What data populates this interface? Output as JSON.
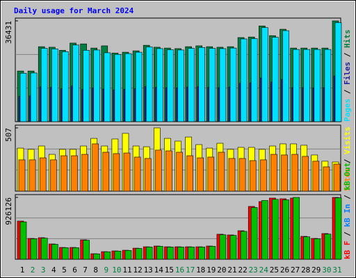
{
  "chart_data": [
    {
      "type": "bar",
      "title": "Daily usage for March 2024",
      "categories": [
        1,
        2,
        3,
        4,
        5,
        6,
        7,
        8,
        9,
        10,
        11,
        12,
        13,
        14,
        15,
        16,
        17,
        18,
        19,
        20,
        21,
        22,
        23,
        24,
        25,
        26,
        27,
        28,
        29,
        30,
        31
      ],
      "weekends": [
        2,
        3,
        9,
        10,
        16,
        17,
        23,
        24,
        30,
        31
      ],
      "weekday_color": "#000000",
      "weekend_color": "#008040",
      "legend_separator": " / ",
      "legend_reversed": true,
      "ylim": [
        0,
        36431
      ],
      "yticks": [
        36431
      ],
      "gridlines": [
        24287,
        12144
      ],
      "series": [
        {
          "name": "Hits",
          "color": "#008040",
          "values": [
            18300,
            18300,
            27100,
            26900,
            25800,
            28400,
            28100,
            26600,
            27400,
            24800,
            25100,
            25600,
            27600,
            26900,
            26600,
            26400,
            27100,
            27400,
            27100,
            26900,
            27100,
            30400,
            30600,
            34600,
            31100,
            33400,
            26600,
            26600,
            26600,
            26600,
            36431
          ]
        },
        {
          "name": "Files",
          "color": "#2020a0",
          "values": [
            9200,
            9300,
            12600,
            12400,
            11900,
            12900,
            11600,
            12200,
            11800,
            11500,
            11700,
            11900,
            12700,
            12400,
            12300,
            12200,
            12500,
            12600,
            12400,
            12300,
            12500,
            13900,
            14000,
            15800,
            14300,
            15300,
            12300,
            12300,
            12200,
            12300,
            16500
          ]
        },
        {
          "name": "Pages",
          "color": "#00e0ff",
          "values": [
            17500,
            17600,
            26500,
            26300,
            25300,
            27700,
            25800,
            25900,
            24900,
            24300,
            24600,
            25100,
            27000,
            26400,
            26000,
            25900,
            26500,
            26800,
            26500,
            26400,
            26600,
            29900,
            30000,
            34000,
            30500,
            32900,
            26100,
            26100,
            26100,
            26100,
            35800
          ]
        }
      ]
    },
    {
      "type": "bar",
      "legend_separator": " / ",
      "legend_reversed": true,
      "ylim": [
        0,
        507
      ],
      "yticks": [
        507
      ],
      "gridlines": [
        338,
        169
      ],
      "series": [
        {
          "name": "Visits",
          "color": "#ffff00",
          "values": [
            345,
            335,
            362,
            295,
            335,
            335,
            362,
            423,
            362,
            418,
            463,
            362,
            356,
            507,
            423,
            401,
            434,
            373,
            345,
            384,
            335,
            351,
            351,
            335,
            362,
            379,
            379,
            368,
            290,
            240,
            234
          ]
        },
        {
          "name": "Sites",
          "color": "#ff8000",
          "values": [
            251,
            251,
            267,
            251,
            284,
            284,
            295,
            379,
            312,
            301,
            306,
            273,
            262,
            329,
            323,
            312,
            284,
            267,
            273,
            312,
            262,
            262,
            245,
            251,
            295,
            290,
            295,
            279,
            240,
            195,
            217
          ]
        }
      ]
    },
    {
      "type": "bar",
      "legend_separator": " / ",
      "legend_reversed": false,
      "ylim": [
        0,
        926126
      ],
      "yticks": [
        926126
      ],
      "gridlines": [
        617417,
        308709
      ],
      "series": [
        {
          "name": "kB F",
          "color": "#ff0000",
          "values": [
            572000,
            312000,
            323000,
            229000,
            177000,
            177000,
            291000,
            83000,
            114000,
            125000,
            135000,
            166000,
            187000,
            198000,
            187000,
            187000,
            187000,
            187000,
            198000,
            375000,
            364000,
            427000,
            791000,
            864000,
            916000,
            906000,
            916000,
            343000,
            312000,
            385000,
            926126
          ]
        },
        {
          "name": "kB In",
          "color": "#0080ff"
        },
        {
          "name": "kB Out",
          "color": "#00c000",
          "values": [
            560000,
            306000,
            316000,
            224000,
            173000,
            173000,
            285000,
            81000,
            112000,
            122000,
            132000,
            162000,
            183000,
            194000,
            183000,
            183000,
            183000,
            183000,
            194000,
            367000,
            357000,
            418000,
            775000,
            880000,
            897000,
            890000,
            926000,
            336000,
            306000,
            377000,
            920000
          ]
        }
      ]
    }
  ]
}
